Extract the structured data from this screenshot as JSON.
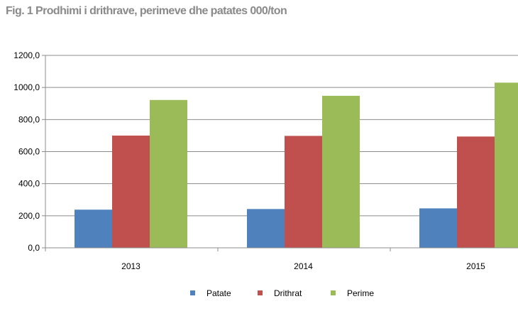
{
  "title": "Fig. 1 Prodhimi i drithrave,  perimeve dhe patates 000/ton",
  "chart_data": {
    "type": "bar",
    "title": "Fig. 1 Prodhimi i drithrave,  perimeve dhe patates 000/ton",
    "xlabel": "",
    "ylabel": "",
    "categories": [
      "2013",
      "2014",
      "2015"
    ],
    "series": [
      {
        "name": "Patate",
        "values": [
          238,
          242,
          246
        ],
        "color": "#4f81bd"
      },
      {
        "name": "Drithrat",
        "values": [
          700,
          698,
          694
        ],
        "color": "#c0504d"
      },
      {
        "name": "Perime",
        "values": [
          922,
          948,
          1030
        ],
        "color": "#9bbb59"
      }
    ],
    "ylim": [
      0,
      1200
    ],
    "yticks": [
      0,
      200,
      400,
      600,
      800,
      1000,
      1200
    ],
    "ytick_labels": [
      "0,0",
      "200,0",
      "400,0",
      "600,0",
      "800,0",
      "1000,0",
      "1200,0"
    ],
    "grid": true,
    "legend": "bottom"
  }
}
